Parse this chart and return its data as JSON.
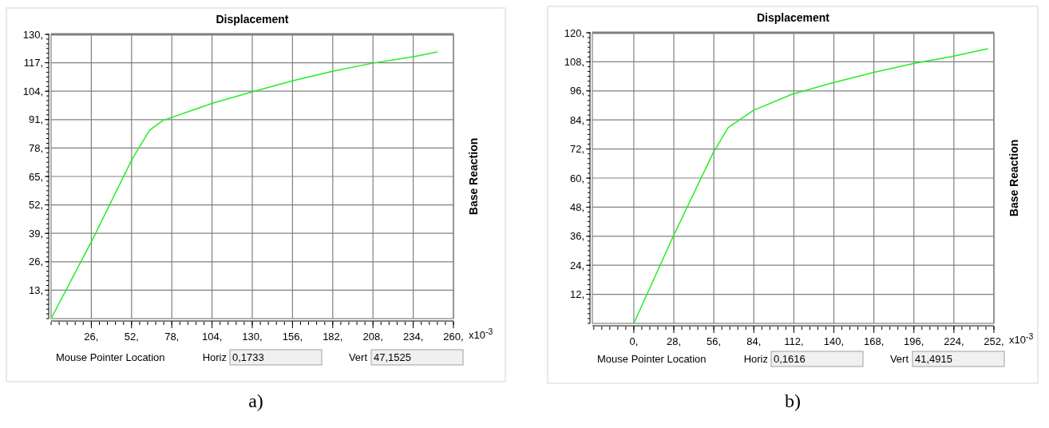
{
  "chart_data": [
    {
      "type": "line",
      "title": "Displacement",
      "ylabel": "Base Reaction",
      "xlim": [
        0,
        260
      ],
      "ylim": [
        0,
        130
      ],
      "grid": true,
      "marker": "none",
      "line_style": "solid",
      "xticks": [
        {
          "value": 26,
          "label": "26,"
        },
        {
          "value": 52,
          "label": "52,"
        },
        {
          "value": 78,
          "label": "78,"
        },
        {
          "value": 104,
          "label": "104,"
        },
        {
          "value": 130,
          "label": "130,"
        },
        {
          "value": 156,
          "label": "156,"
        },
        {
          "value": 182,
          "label": "182,"
        },
        {
          "value": 208,
          "label": "208,"
        },
        {
          "value": 234,
          "label": "234,"
        },
        {
          "value": 260,
          "label": "260,"
        }
      ],
      "yticks": [
        {
          "value": 13,
          "label": "13,"
        },
        {
          "value": 26,
          "label": "26,"
        },
        {
          "value": 39,
          "label": "39,"
        },
        {
          "value": 52,
          "label": "52,"
        },
        {
          "value": 65,
          "label": "65,"
        },
        {
          "value": 78,
          "label": "78,"
        },
        {
          "value": 91,
          "label": "91,"
        },
        {
          "value": 104,
          "label": "104,"
        },
        {
          "value": 117,
          "label": "117,"
        },
        {
          "value": 130,
          "label": "130,"
        }
      ],
      "annotations": [
        "x10$^{-3}$",
        "Mouse Pointer Location",
        "Horiz",
        "0,1733",
        "Vert",
        "47,1525",
        "a)"
      ],
      "series": [
        {
          "color": "#22ee22",
          "x": [
            0,
            26.8,
            52.2,
            63.6,
            72.2,
            104.8,
            130,
            156.4,
            182.6,
            208.4,
            234.2,
            249.7
          ],
          "values": [
            0,
            36.2,
            72.7,
            86.1,
            90.6,
            98.6,
            103.7,
            108.8,
            113.2,
            116.9,
            119.8,
            122
          ]
        }
      ]
    },
    {
      "type": "line",
      "title": "Displacement",
      "ylabel": "Base Reaction",
      "xlim": [
        -29,
        252
      ],
      "ylim": [
        0,
        120
      ],
      "grid": true,
      "marker": "none",
      "line_style": "solid",
      "xticks": [
        {
          "value": 0,
          "label": "0,"
        },
        {
          "value": 28,
          "label": "28,"
        },
        {
          "value": 56,
          "label": "56,"
        },
        {
          "value": 84,
          "label": "84,"
        },
        {
          "value": 112,
          "label": "112,"
        },
        {
          "value": 140,
          "label": "140,"
        },
        {
          "value": 168,
          "label": "168,"
        },
        {
          "value": 196,
          "label": "196,"
        },
        {
          "value": 224,
          "label": "224,"
        },
        {
          "value": 252,
          "label": "252,"
        }
      ],
      "yticks": [
        {
          "value": 12,
          "label": "12,"
        },
        {
          "value": 24,
          "label": "24,"
        },
        {
          "value": 36,
          "label": "36,"
        },
        {
          "value": 48,
          "label": "48,"
        },
        {
          "value": 60,
          "label": "60,"
        },
        {
          "value": 72,
          "label": "72,"
        },
        {
          "value": 84,
          "label": "84,"
        },
        {
          "value": 96,
          "label": "96,"
        },
        {
          "value": 108,
          "label": "108,"
        },
        {
          "value": 120,
          "label": "120,"
        }
      ],
      "annotations": [
        "x10$^{-3}$",
        "Mouse Pointer Location",
        "Horiz",
        "0,1616",
        "Vert",
        "41,4915",
        "b)"
      ],
      "series": [
        {
          "color": "#22ee22",
          "x": [
            0,
            27.3,
            55.6,
            66,
            83.6,
            111.1,
            139.1,
            167.1,
            195.1,
            222.7,
            247.8
          ],
          "values": [
            0,
            35.6,
            70.5,
            80.8,
            87.9,
            94.7,
            99.3,
            103.5,
            107.2,
            110.2,
            113.4
          ]
        }
      ]
    }
  ]
}
